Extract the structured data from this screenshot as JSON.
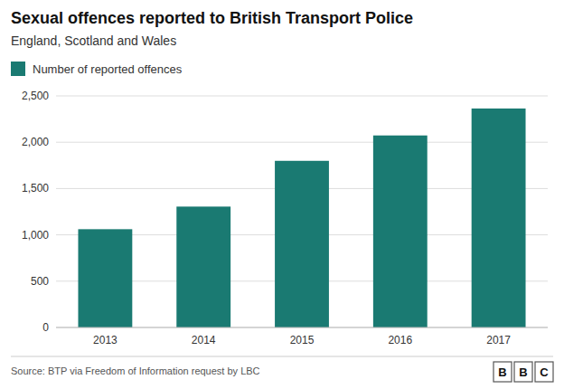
{
  "chart_data": {
    "type": "bar",
    "title": "Sexual offences reported to British Transport Police",
    "subtitle": "England, Scotland and Wales",
    "source": "Source: BTP via Freedom of Information request by LBC",
    "annotations": [
      "B",
      "B",
      "C"
    ],
    "categories": [
      "2013",
      "2014",
      "2015",
      "2016",
      "2017"
    ],
    "series": [
      {
        "name": "Number of reported offences",
        "color": "#1a7a72",
        "values": [
          1061,
          1305,
          1799,
          2073,
          2364
        ]
      }
    ],
    "ylim": [
      0,
      2500
    ],
    "yticks": [
      0,
      500,
      {
        "value": 1000,
        "label": "1,000"
      },
      {
        "value": 1500,
        "label": "1,500"
      },
      {
        "value": 2000,
        "label": "2,000"
      },
      {
        "value": 2500,
        "label": "2,500"
      }
    ],
    "grid": true,
    "legend": "upper left"
  }
}
